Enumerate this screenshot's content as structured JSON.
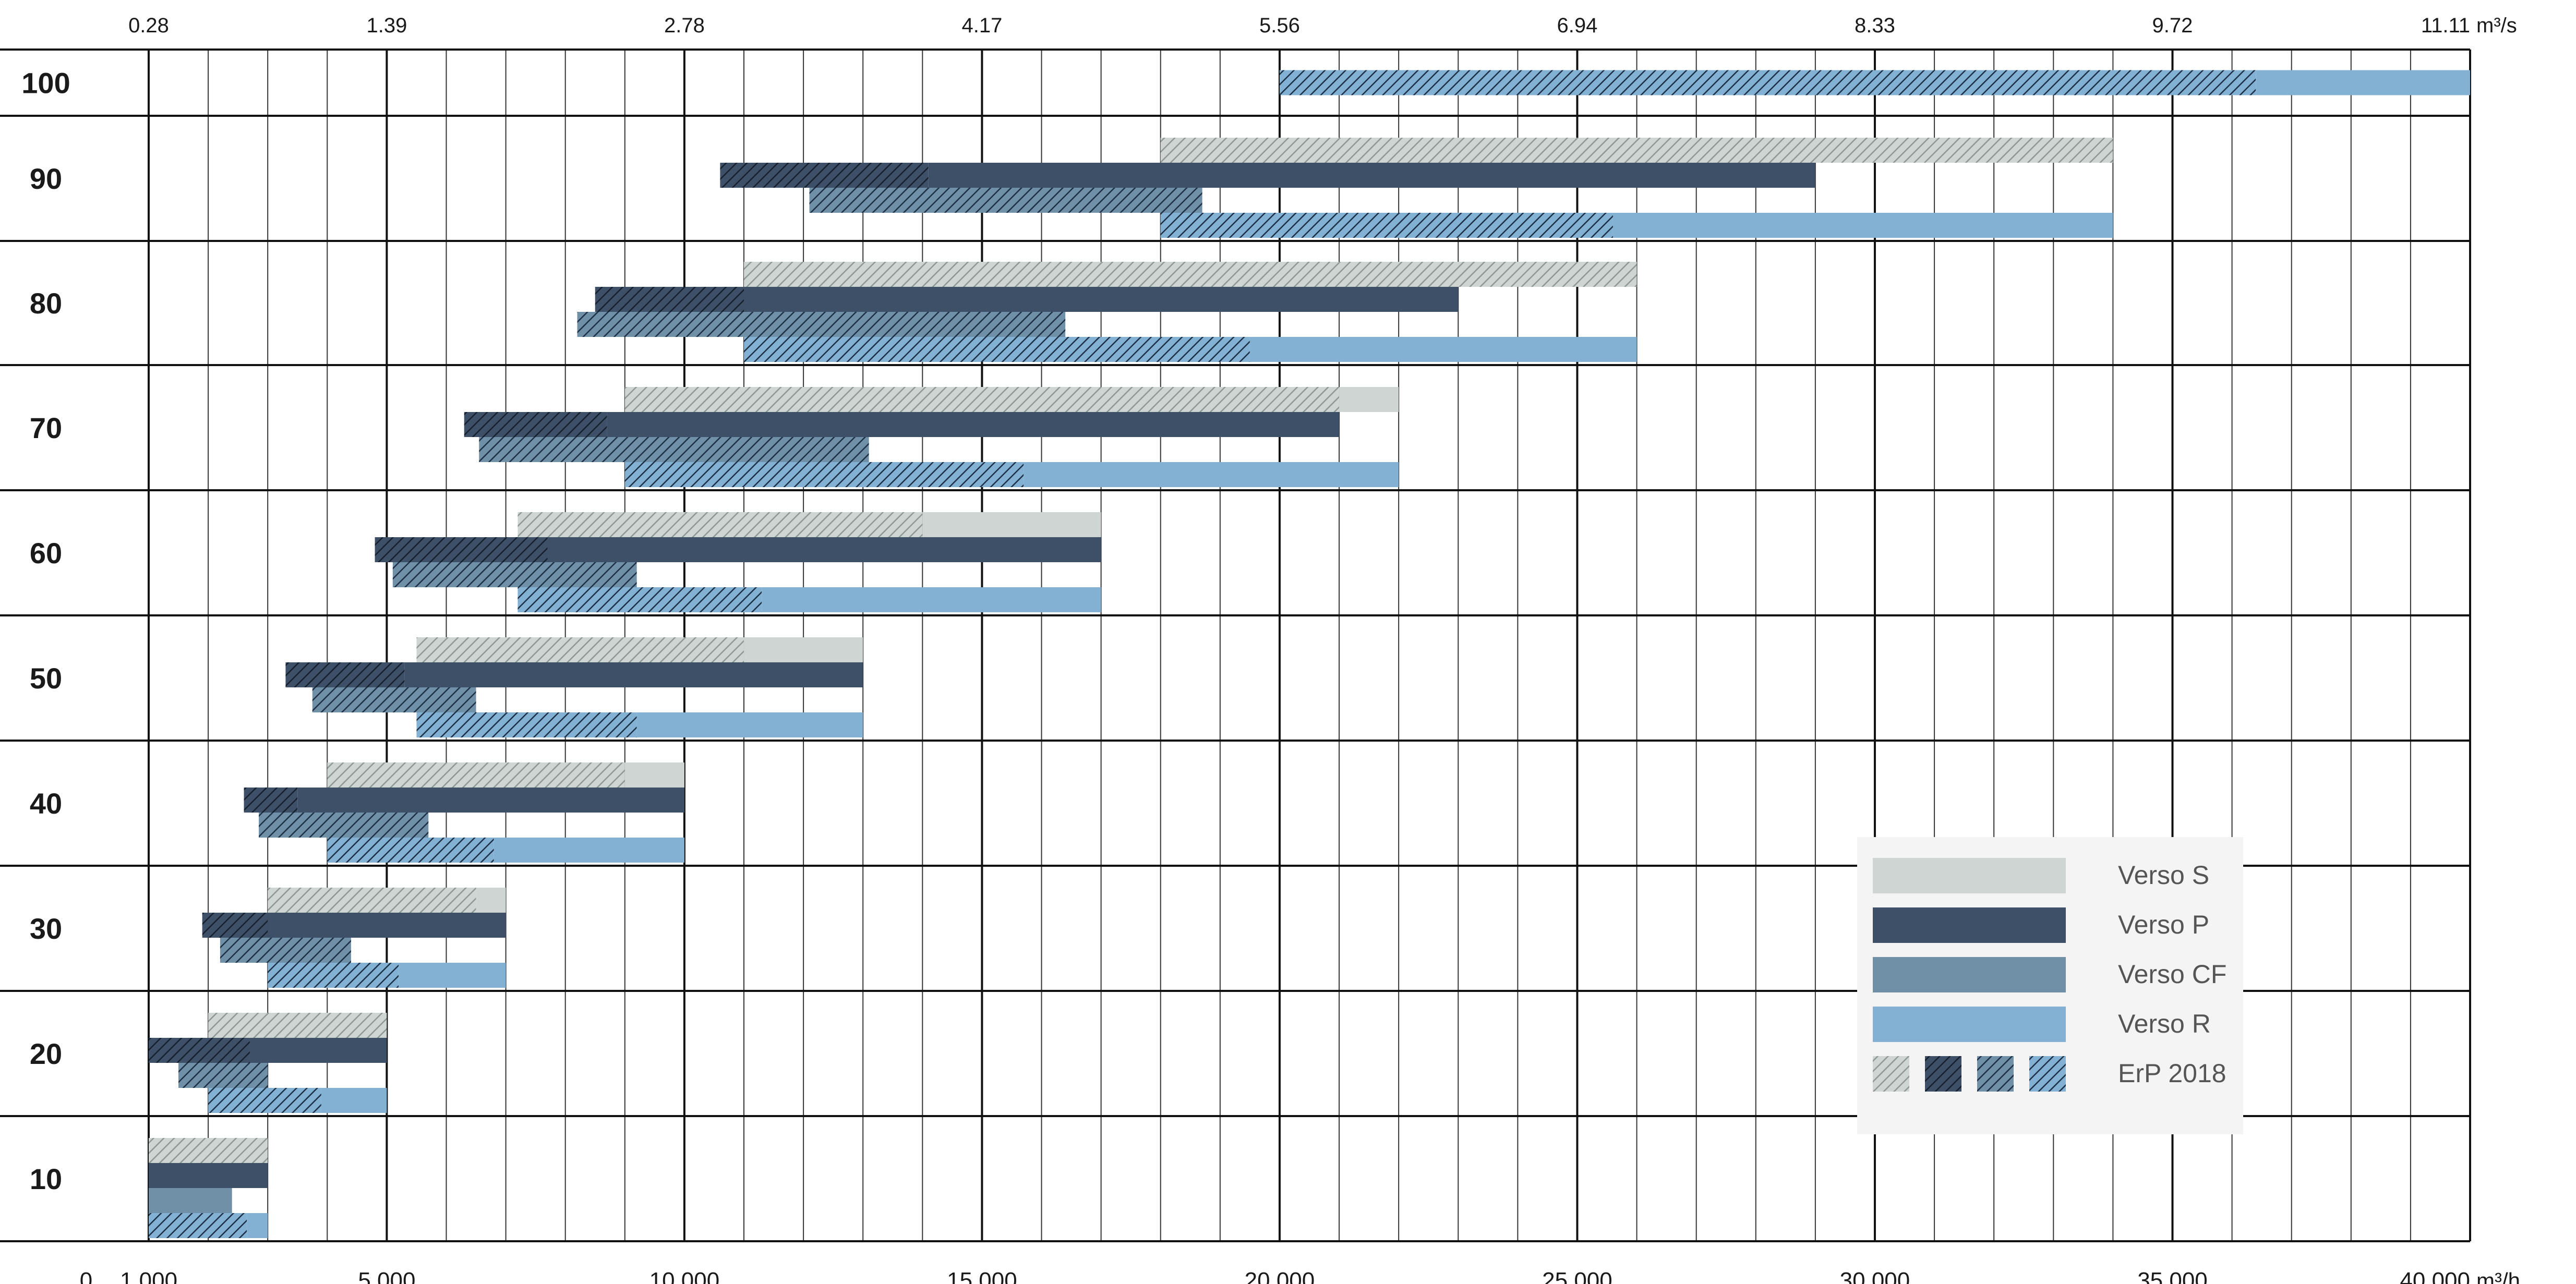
{
  "chart_data": {
    "type": "bar",
    "orientation": "horizontal-range",
    "x_range": [
      0,
      40000
    ],
    "x_unit": "m³/h",
    "top_axis_unit": "m³/s",
    "grid": true,
    "legend_position": "bottom-right",
    "bottom_ticks": [
      {
        "value": 0,
        "label": "0"
      },
      {
        "value": 1000,
        "label": "1 000"
      },
      {
        "value": 5000,
        "label": "5 000"
      },
      {
        "value": 10000,
        "label": "10 000"
      },
      {
        "value": 15000,
        "label": "15 000"
      },
      {
        "value": 20000,
        "label": "20 000"
      },
      {
        "value": 25000,
        "label": "25 000"
      },
      {
        "value": 30000,
        "label": "30 000"
      },
      {
        "value": 35000,
        "label": "35 000"
      },
      {
        "value": 40000,
        "label": "40 000"
      }
    ],
    "top_ticks": [
      {
        "value": 1000,
        "label": "0.28"
      },
      {
        "value": 5000,
        "label": "1.39"
      },
      {
        "value": 10000,
        "label": "2.78"
      },
      {
        "value": 15000,
        "label": "4.17"
      },
      {
        "value": 20000,
        "label": "5.56"
      },
      {
        "value": 25000,
        "label": "6.94"
      },
      {
        "value": 30000,
        "label": "8.33"
      },
      {
        "value": 35000,
        "label": "9.72"
      },
      {
        "value": 40000,
        "label": "11.11"
      }
    ],
    "series": [
      {
        "name": "Verso S",
        "color": "#cfd5d3"
      },
      {
        "name": "Verso P",
        "color": "#3e5068"
      },
      {
        "name": "Verso CF",
        "color": "#7090a7"
      },
      {
        "name": "Verso R",
        "color": "#83b1d4"
      }
    ],
    "hatch_legend_label": "ErP 2018",
    "sizes": [
      {
        "label": "10",
        "bars": [
          {
            "series": "Verso S",
            "start": 1000,
            "hatch_end": 3000,
            "end": 3000
          },
          {
            "series": "Verso P",
            "start": 1000,
            "hatch_end": 1000,
            "end": 3000
          },
          {
            "series": "Verso CF",
            "start": 1000,
            "hatch_end": 1000,
            "end": 2400
          },
          {
            "series": "Verso R",
            "start": 1000,
            "hatch_end": 2650,
            "end": 3000
          }
        ]
      },
      {
        "label": "20",
        "bars": [
          {
            "series": "Verso S",
            "start": 2000,
            "hatch_end": 5000,
            "end": 5000
          },
          {
            "series": "Verso P",
            "start": 1000,
            "hatch_end": 2700,
            "end": 5000
          },
          {
            "series": "Verso CF",
            "start": 1500,
            "hatch_end": 3000,
            "end": 3000
          },
          {
            "series": "Verso R",
            "start": 2000,
            "hatch_end": 3900,
            "end": 5000
          }
        ]
      },
      {
        "label": "30",
        "bars": [
          {
            "series": "Verso S",
            "start": 3000,
            "hatch_end": 6500,
            "end": 7000
          },
          {
            "series": "Verso P",
            "start": 1900,
            "hatch_end": 3000,
            "end": 7000
          },
          {
            "series": "Verso CF",
            "start": 2200,
            "hatch_end": 4400,
            "end": 4400
          },
          {
            "series": "Verso R",
            "start": 3000,
            "hatch_end": 5200,
            "end": 7000
          }
        ]
      },
      {
        "label": "40",
        "bars": [
          {
            "series": "Verso S",
            "start": 4000,
            "hatch_end": 9000,
            "end": 10000
          },
          {
            "series": "Verso P",
            "start": 2600,
            "hatch_end": 3500,
            "end": 10000
          },
          {
            "series": "Verso CF",
            "start": 2850,
            "hatch_end": 5700,
            "end": 5700
          },
          {
            "series": "Verso R",
            "start": 4000,
            "hatch_end": 6800,
            "end": 10000
          }
        ]
      },
      {
        "label": "50",
        "bars": [
          {
            "series": "Verso S",
            "start": 5500,
            "hatch_end": 11000,
            "end": 13000
          },
          {
            "series": "Verso P",
            "start": 3300,
            "hatch_end": 5300,
            "end": 13000
          },
          {
            "series": "Verso CF",
            "start": 3750,
            "hatch_end": 6500,
            "end": 6500
          },
          {
            "series": "Verso R",
            "start": 5500,
            "hatch_end": 9200,
            "end": 13000
          }
        ]
      },
      {
        "label": "60",
        "bars": [
          {
            "series": "Verso S",
            "start": 7200,
            "hatch_end": 14000,
            "end": 17000
          },
          {
            "series": "Verso P",
            "start": 4800,
            "hatch_end": 7700,
            "end": 17000
          },
          {
            "series": "Verso CF",
            "start": 5100,
            "hatch_end": 9200,
            "end": 9200
          },
          {
            "series": "Verso R",
            "start": 7200,
            "hatch_end": 11300,
            "end": 17000
          }
        ]
      },
      {
        "label": "70",
        "bars": [
          {
            "series": "Verso S",
            "start": 9000,
            "hatch_end": 21000,
            "end": 22000
          },
          {
            "series": "Verso P",
            "start": 6300,
            "hatch_end": 8700,
            "end": 21000
          },
          {
            "series": "Verso CF",
            "start": 6550,
            "hatch_end": 13100,
            "end": 13100
          },
          {
            "series": "Verso R",
            "start": 9000,
            "hatch_end": 15700,
            "end": 22000
          }
        ]
      },
      {
        "label": "80",
        "bars": [
          {
            "series": "Verso S",
            "start": 11000,
            "hatch_end": 26000,
            "end": 26000
          },
          {
            "series": "Verso P",
            "start": 8500,
            "hatch_end": 11000,
            "end": 23000
          },
          {
            "series": "Verso CF",
            "start": 8200,
            "hatch_end": 16400,
            "end": 16400
          },
          {
            "series": "Verso R",
            "start": 11000,
            "hatch_end": 19500,
            "end": 26000
          }
        ]
      },
      {
        "label": "90",
        "bars": [
          {
            "series": "Verso S",
            "start": 18000,
            "hatch_end": 34000,
            "end": 34000
          },
          {
            "series": "Verso P",
            "start": 10600,
            "hatch_end": 14100,
            "end": 29000
          },
          {
            "series": "Verso CF",
            "start": 12100,
            "hatch_end": 18700,
            "end": 18700
          },
          {
            "series": "Verso R",
            "start": 18000,
            "hatch_end": 25600,
            "end": 34000
          }
        ]
      },
      {
        "label": "100",
        "bars": [
          {
            "series": "Verso R",
            "start": 20000,
            "hatch_end": 36400,
            "end": 40000
          }
        ]
      }
    ]
  }
}
